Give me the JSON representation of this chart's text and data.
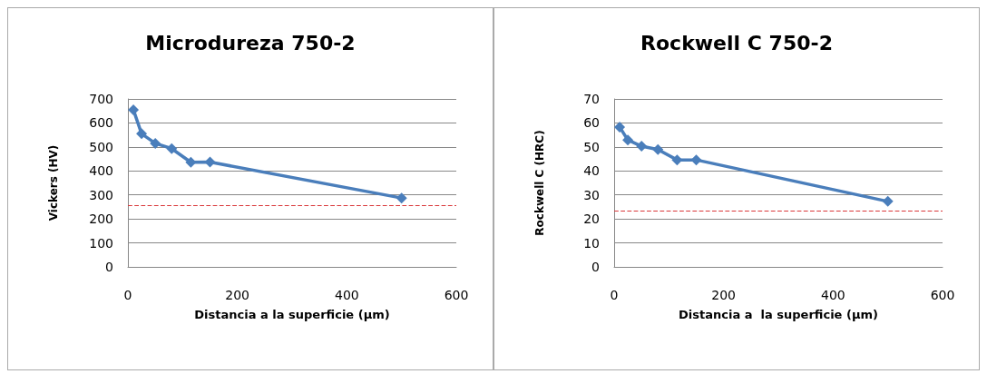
{
  "chart_data": [
    {
      "type": "line",
      "title": "Microdureza 750-2",
      "xlabel": "Distancia a la superficie (µm)",
      "ylabel": "Vickers (HV)",
      "x": [
        10,
        25,
        50,
        80,
        115,
        150,
        500
      ],
      "series": [
        {
          "color": "#4a7ebb",
          "values": [
            655,
            555,
            515,
            493,
            436,
            437,
            287
          ]
        }
      ],
      "xlim": [
        0,
        600
      ],
      "xticks": [
        0,
        200,
        400,
        600
      ],
      "ylim": [
        0,
        700
      ],
      "yticks": [
        0,
        100,
        200,
        300,
        400,
        500,
        600,
        700
      ],
      "grid": "y",
      "marker": "diamond",
      "line_style": "solid",
      "ref_lines": [
        {
          "axis": "y",
          "value": 255,
          "color": "#d9383a",
          "line_style": "dashed"
        }
      ]
    },
    {
      "type": "line",
      "title": "Rockwell C 750-2",
      "xlabel": "Distancia a  la superficie (µm)",
      "ylabel": "Rockwell C (HRC)",
      "x": [
        10,
        25,
        50,
        80,
        115,
        150,
        500
      ],
      "series": [
        {
          "color": "#4a7ebb",
          "values": [
            58.3,
            52.9,
            50.3,
            48.9,
            44.6,
            44.6,
            27.3
          ]
        }
      ],
      "xlim": [
        0,
        600
      ],
      "xticks": [
        0,
        200,
        400,
        600
      ],
      "ylim": [
        0,
        70
      ],
      "yticks": [
        0,
        10,
        20,
        30,
        40,
        50,
        60,
        70
      ],
      "grid": "y",
      "marker": "diamond",
      "line_style": "solid",
      "ref_lines": [
        {
          "axis": "y",
          "value": 23.3,
          "color": "#d9383a",
          "line_style": "dashed"
        }
      ]
    }
  ]
}
